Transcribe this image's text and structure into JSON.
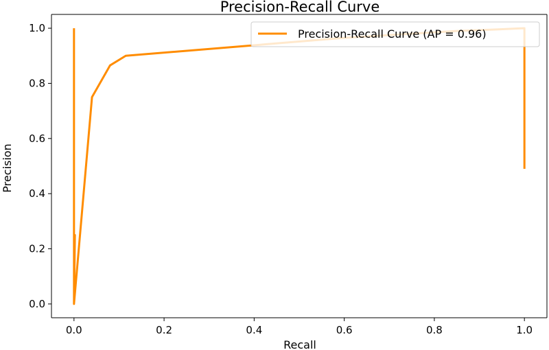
{
  "chart_data": {
    "type": "line",
    "title": "Precision-Recall Curve",
    "xlabel": "Recall",
    "ylabel": "Precision",
    "xlim": [
      -0.05,
      1.05
    ],
    "ylim": [
      -0.05,
      1.05
    ],
    "xticks": [
      0.0,
      0.2,
      0.4,
      0.6,
      0.8,
      1.0
    ],
    "xtick_labels": [
      "0.0",
      "0.2",
      "0.4",
      "0.6",
      "0.8",
      "1.0"
    ],
    "yticks": [
      0.0,
      0.2,
      0.4,
      0.6,
      0.8,
      1.0
    ],
    "ytick_labels": [
      "0.0",
      "0.2",
      "0.4",
      "0.6",
      "0.8",
      "1.0"
    ],
    "grid": false,
    "legend_position": "top-right",
    "series": [
      {
        "name": "Precision-Recall Curve (AP = 0.96)",
        "color": "#ff8c00",
        "x": [
          0.0,
          0.0,
          0.0,
          0.001,
          0.002,
          0.0,
          0.04,
          0.08,
          0.115,
          0.6,
          0.75,
          0.85,
          0.93,
          1.0,
          1.0
        ],
        "y": [
          1.0,
          0.0,
          0.005,
          0.15,
          0.25,
          0.0,
          0.75,
          0.865,
          0.9,
          0.965,
          0.98,
          0.99,
          0.995,
          1.0,
          0.49
        ]
      }
    ]
  }
}
